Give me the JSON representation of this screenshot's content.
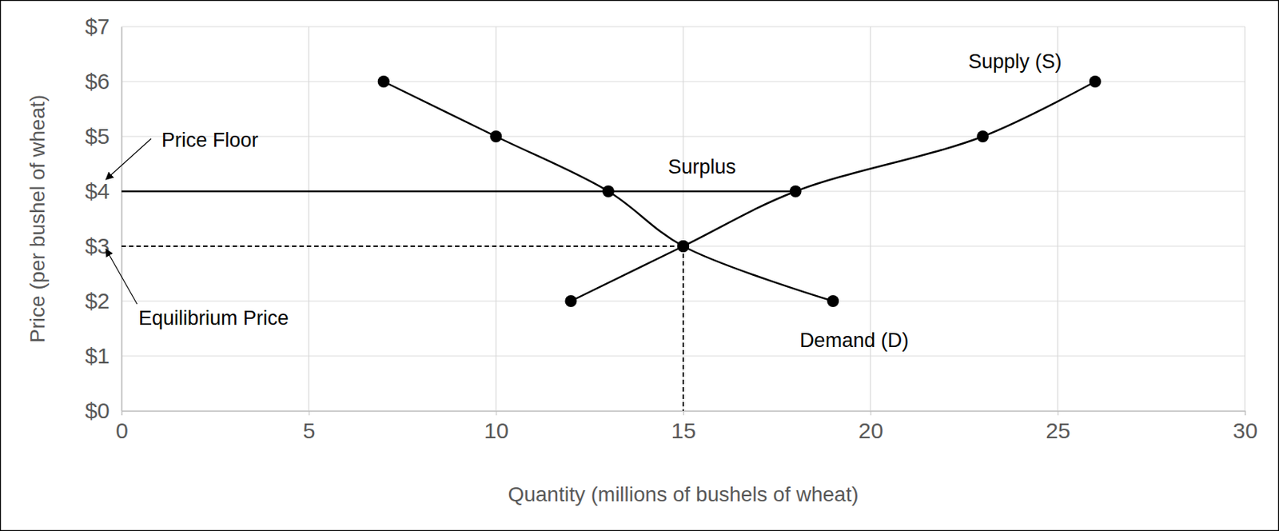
{
  "chart_data": {
    "type": "line",
    "x_label": "Quantity (millions of bushels of wheat)",
    "y_label": "Price (per bushel of wheat)",
    "xlim": [
      0,
      30
    ],
    "xticks": [
      0,
      5,
      10,
      15,
      20,
      25,
      30
    ],
    "ylim": [
      0,
      7
    ],
    "yticks": [
      {
        "value": 0,
        "label": "$0"
      },
      {
        "value": 1,
        "label": "$1"
      },
      {
        "value": 2,
        "label": "$2"
      },
      {
        "value": 3,
        "label": "$3"
      },
      {
        "value": 4,
        "label": "$4"
      },
      {
        "value": 5,
        "label": "$5"
      },
      {
        "value": 6,
        "label": "$6"
      },
      {
        "value": 7,
        "label": "$7"
      }
    ],
    "grid": true,
    "series": [
      {
        "name": "Supply (S)",
        "color": "#000000",
        "marker": "circle",
        "line_style": "solid",
        "x": [
          12,
          15,
          18,
          23,
          26
        ],
        "values": [
          2,
          3,
          4,
          5,
          6
        ]
      },
      {
        "name": "Demand (D)",
        "color": "#000000",
        "marker": "circle",
        "line_style": "solid",
        "x": [
          7,
          10,
          13,
          15,
          19
        ],
        "values": [
          6,
          5,
          4,
          3,
          2
        ]
      }
    ],
    "price_floor": {
      "value": 4,
      "label": "Price Floor"
    },
    "equilibrium": {
      "price": 3,
      "quantity": 15,
      "label": "Equilibrium Price"
    },
    "annotations": [
      "Surplus"
    ]
  }
}
